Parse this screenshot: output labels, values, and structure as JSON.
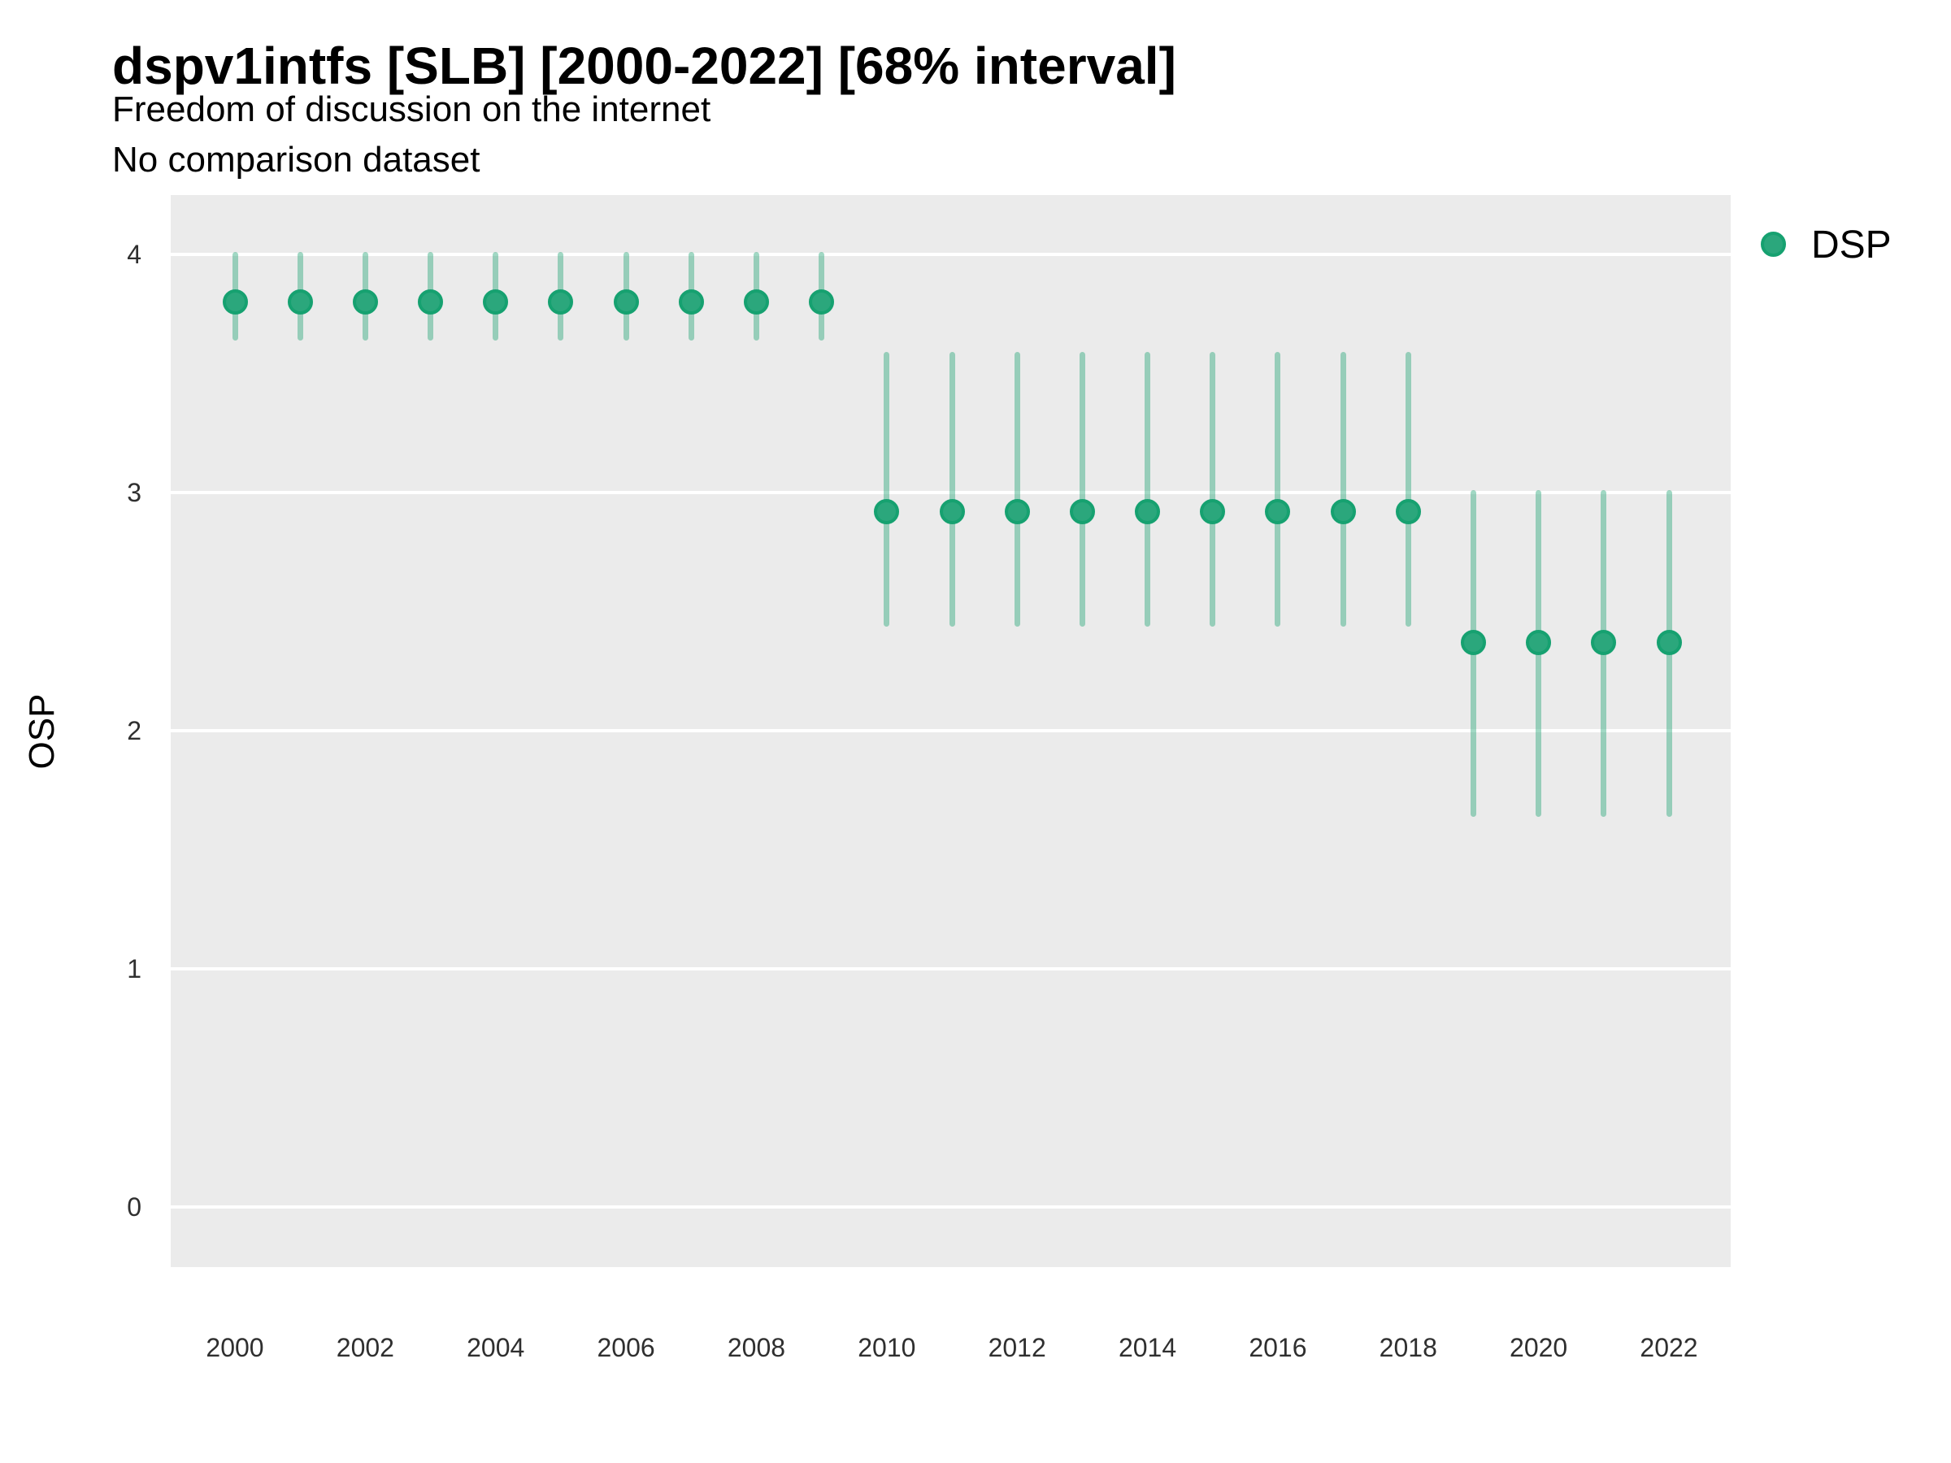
{
  "header": {
    "title": "dspv1intfs [SLB] [2000-2022] [68% interval]",
    "subtitle": "Freedom of discussion on the internet",
    "note": "No comparison dataset"
  },
  "y_axis": {
    "title": "OSP",
    "tick_labels": [
      "4",
      "3",
      "2",
      "1",
      "0"
    ]
  },
  "x_axis": {
    "tick_labels": [
      "2000",
      "2002",
      "2004",
      "2006",
      "2008",
      "2010",
      "2012",
      "2014",
      "2016",
      "2018",
      "2020",
      "2022"
    ]
  },
  "legend": {
    "position": "right",
    "items": [
      {
        "label": "DSP",
        "marker": "point-icon",
        "color": "#2ba77c"
      }
    ]
  },
  "chart_data": {
    "type": "scatter",
    "title": "dspv1intfs [SLB] [2000-2022] [68% interval]",
    "subtitle": "Freedom of discussion on the internet",
    "annotation": "No comparison dataset",
    "interval": "68%",
    "xlabel": "",
    "ylabel": "OSP",
    "ylim": [
      0,
      4
    ],
    "yticks": [
      4,
      3,
      2,
      1,
      0
    ],
    "xticks": [
      2000,
      2002,
      2004,
      2006,
      2008,
      2010,
      2012,
      2014,
      2016,
      2018,
      2020,
      2022
    ],
    "grid": true,
    "legend_position": "right",
    "series": [
      {
        "name": "DSP",
        "x": [
          2000,
          2001,
          2002,
          2003,
          2004,
          2005,
          2006,
          2007,
          2008,
          2009,
          2010,
          2011,
          2012,
          2013,
          2014,
          2015,
          2016,
          2017,
          2018,
          2019,
          2020,
          2021,
          2022
        ],
        "y": [
          3.8,
          3.8,
          3.8,
          3.8,
          3.8,
          3.8,
          3.8,
          3.8,
          3.8,
          3.8,
          2.92,
          2.92,
          2.92,
          2.92,
          2.92,
          2.92,
          2.92,
          2.92,
          2.92,
          2.37,
          2.37,
          2.37,
          2.37
        ],
        "lo": [
          3.65,
          3.65,
          3.65,
          3.65,
          3.65,
          3.65,
          3.65,
          3.65,
          3.65,
          3.65,
          2.45,
          2.45,
          2.45,
          2.45,
          2.45,
          2.45,
          2.45,
          2.45,
          2.45,
          1.65,
          1.65,
          1.65,
          1.65
        ],
        "hi": [
          4.0,
          4.0,
          4.0,
          4.0,
          4.0,
          4.0,
          4.0,
          4.0,
          4.0,
          4.0,
          3.58,
          3.58,
          3.58,
          3.58,
          3.58,
          3.58,
          3.58,
          3.58,
          3.58,
          3.0,
          3.0,
          3.0,
          3.0
        ]
      }
    ],
    "colors": {
      "point": "#2ba77c",
      "point_ring": "#16a170",
      "interval_line": "rgba(46,168,124,0.45)",
      "panel_background": "#ebebeb",
      "gridline": "#ffffff"
    }
  }
}
